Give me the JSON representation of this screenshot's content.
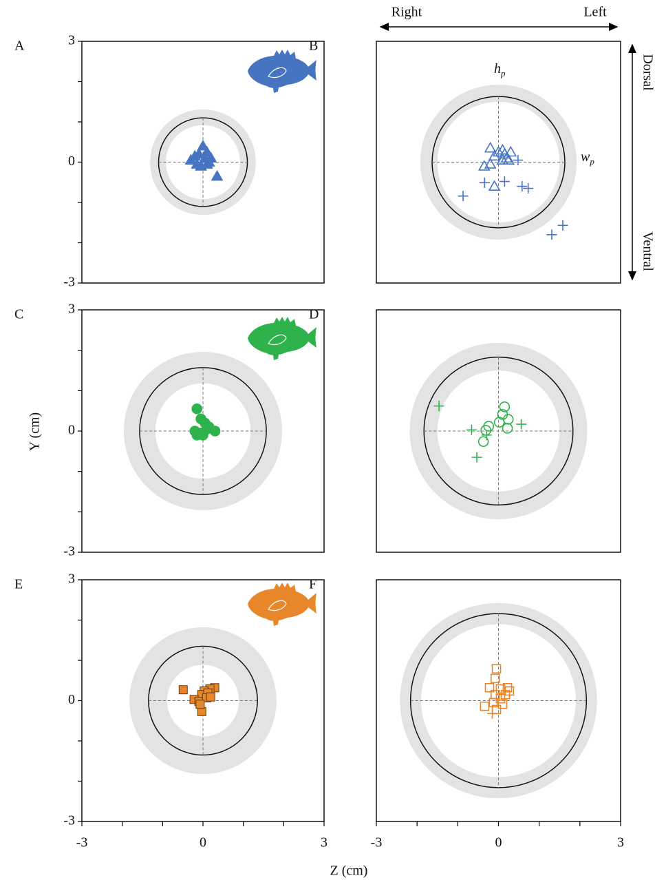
{
  "figure": {
    "xlabel": "Z (cm)",
    "ylabel": "Y (cm)",
    "direction_top": [
      "Right",
      "Left"
    ],
    "direction_side": [
      "Dorsal",
      "Ventral"
    ],
    "annotations": [
      {
        "text": "h",
        "sub": "p"
      },
      {
        "text": "w",
        "sub": "p"
      }
    ]
  },
  "chart_data": [
    {
      "type": "scatter",
      "panel_label": "A",
      "xlim": [
        -3,
        3
      ],
      "ylim": [
        -3,
        3
      ],
      "yticks": [
        -3,
        0,
        3
      ],
      "minor_yticks": [
        -2,
        -1,
        1,
        2
      ],
      "circle_radius": 1.1,
      "band": [
        0.92,
        1.31
      ],
      "color": "#4674c1",
      "series": [
        {
          "marker": "triangle",
          "filled": true,
          "color": "#4674c1",
          "x": [
            -0.3,
            -0.2,
            -0.15,
            -0.1,
            0,
            0.05,
            0.1,
            0.15,
            0.2,
            -0.05,
            0.35,
            0.1
          ],
          "values": [
            0.05,
            0.15,
            -0.05,
            0.2,
            0.4,
            0.1,
            0.25,
            0,
            0.1,
            -0.1,
            -0.35,
            -0.05
          ]
        }
      ]
    },
    {
      "type": "scatter",
      "panel_label": "B",
      "xlim": [
        -3,
        3
      ],
      "ylim": [
        -3,
        3
      ],
      "circle_radius": 1.63,
      "band": [
        1.5,
        1.92
      ],
      "color": "#4674c1",
      "series": [
        {
          "marker": "triangle",
          "filled": false,
          "color": "#4674c1",
          "x": [
            -0.2,
            -0.1,
            0,
            0.1,
            0.15,
            0.2,
            0.25,
            0.1,
            -0.35,
            -0.2,
            -0.1,
            0.3
          ],
          "values": [
            0.35,
            0.15,
            0.25,
            0.3,
            0.2,
            0.1,
            0.05,
            0.05,
            -0.1,
            -0.05,
            -0.6,
            0.25
          ]
        },
        {
          "marker": "plus",
          "filled": false,
          "color": "#4674c1",
          "x": [
            1.58,
            1.31,
            -0.87,
            -0.34,
            0.15,
            0.58,
            0.73,
            0.48
          ],
          "values": [
            -1.57,
            -1.8,
            -0.84,
            -0.51,
            -0.48,
            -0.6,
            -0.65,
            0.05
          ]
        }
      ]
    },
    {
      "type": "scatter",
      "panel_label": "C",
      "xlim": [
        -3,
        3
      ],
      "ylim": [
        -3,
        3
      ],
      "yticks": [
        -3,
        0,
        3
      ],
      "minor_yticks": [
        -2,
        -1,
        1,
        2
      ],
      "circle_radius": 1.57,
      "band": [
        1.18,
        1.96
      ],
      "color": "#2eb24b",
      "series": [
        {
          "marker": "circle",
          "filled": true,
          "color": "#2eb24b",
          "x": [
            -0.15,
            -0.05,
            0.05,
            0.1,
            -0.2,
            -0.15,
            0,
            0.3,
            0.15,
            -0.05
          ],
          "values": [
            0.55,
            0.3,
            0.2,
            0.05,
            0,
            -0.1,
            -0.1,
            0,
            0.1,
            -0.05
          ]
        }
      ]
    },
    {
      "type": "scatter",
      "panel_label": "D",
      "xlim": [
        -3,
        3
      ],
      "ylim": [
        -3,
        3
      ],
      "circle_radius": 1.83,
      "band": [
        1.5,
        2.18
      ],
      "color": "#2eb24b",
      "series": [
        {
          "marker": "circle",
          "filled": false,
          "color": "#2eb24b",
          "x": [
            0.15,
            0.1,
            0.24,
            0.02,
            -0.24,
            -0.31,
            -0.37,
            0.22
          ],
          "values": [
            0.6,
            0.41,
            0.29,
            0.22,
            0.12,
            0.02,
            -0.26,
            0.07
          ]
        },
        {
          "marker": "plus",
          "filled": false,
          "color": "#2eb24b",
          "x": [
            -1.46,
            -0.66,
            -0.53,
            0.56,
            -0.29
          ],
          "values": [
            0.62,
            0.03,
            -0.65,
            0.17,
            -0.1
          ]
        }
      ]
    },
    {
      "type": "scatter",
      "panel_label": "E",
      "xlim": [
        -3,
        3
      ],
      "ylim": [
        -3,
        3
      ],
      "yticks": [
        -3,
        0,
        3
      ],
      "minor_yticks": [
        -2,
        -1,
        1,
        2
      ],
      "xticks": [
        -3,
        0,
        3
      ],
      "minor_xticks": [
        -2,
        -1,
        1,
        2
      ],
      "circle_radius": 1.35,
      "band": [
        0.89,
        1.82
      ],
      "color": "#e8872a",
      "series": [
        {
          "marker": "square",
          "filled": true,
          "color": "#e8872a",
          "x": [
            -0.49,
            0.29,
            0.17,
            0.03,
            -0.03,
            0.12,
            -0.22,
            -0.1,
            0.09,
            -0.03,
            -0.07,
            0.19
          ],
          "values": [
            0.27,
            0.32,
            0.29,
            0.24,
            0.15,
            0.19,
            0.03,
            -0.02,
            0.07,
            -0.27,
            -0.09,
            0.09
          ]
        }
      ]
    },
    {
      "type": "scatter",
      "panel_label": "F",
      "xlim": [
        -3,
        3
      ],
      "ylim": [
        -3,
        3
      ],
      "xticks": [
        -3,
        0,
        3
      ],
      "minor_xticks": [
        -2,
        -1,
        1,
        2
      ],
      "circle_radius": 2.16,
      "band": [
        1.9,
        2.42
      ],
      "color": "#e8872a",
      "series": [
        {
          "marker": "square",
          "filled": false,
          "color": "#e8872a",
          "x": [
            -0.05,
            -0.08,
            -0.22,
            0.05,
            0.22,
            0.27,
            0.17,
            -0.08,
            -0.34,
            -0.12,
            0.1,
            0.05,
            -0.05
          ],
          "values": [
            0.79,
            0.55,
            0.32,
            0.29,
            0.32,
            0.24,
            0.15,
            0.15,
            -0.14,
            -0.05,
            -0.09,
            0.05,
            -0.22
          ]
        },
        {
          "marker": "plus",
          "filled": false,
          "color": "#e8872a",
          "x": [
            -0.15
          ],
          "values": [
            -0.32
          ]
        }
      ]
    }
  ]
}
